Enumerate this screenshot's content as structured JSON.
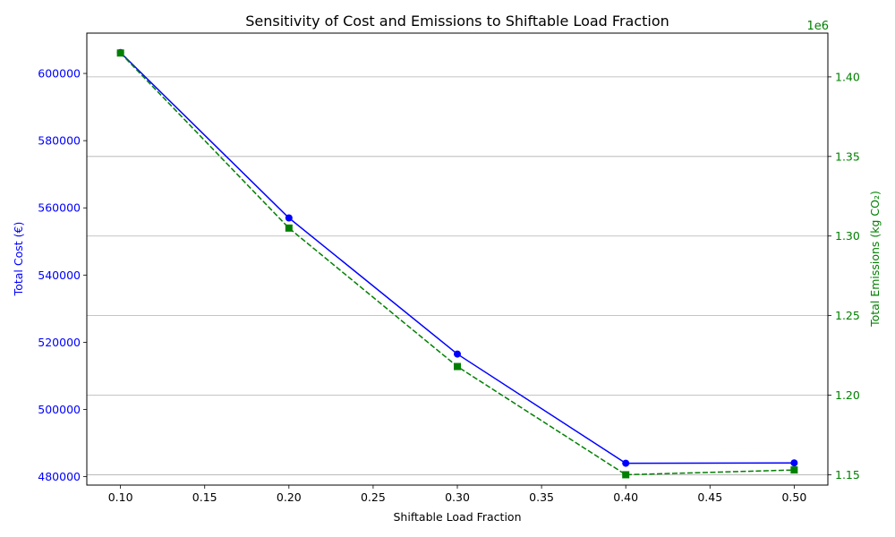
{
  "chart_data": {
    "type": "line",
    "title": "Sensitivity of Cost and Emissions to Shiftable Load Fraction",
    "xlabel": "Shiftable Load Fraction",
    "x": [
      0.1,
      0.2,
      0.3,
      0.4,
      0.5
    ],
    "xlim": [
      0.08,
      0.52
    ],
    "xticks": [
      "0.10",
      "0.15",
      "0.20",
      "0.25",
      "0.30",
      "0.35",
      "0.40",
      "0.45",
      "0.50"
    ],
    "left_axis": {
      "label": "Total Cost (€)",
      "color": "#0000ff",
      "ylim": [
        477500,
        612000
      ],
      "ticks": [
        480000,
        500000,
        520000,
        540000,
        560000,
        580000,
        600000
      ],
      "tick_labels": [
        "480000",
        "500000",
        "520000",
        "540000",
        "560000",
        "580000",
        "600000"
      ]
    },
    "right_axis": {
      "label": "Total Emissions (kg CO₂)",
      "color": "#008000",
      "offset_text": "1e6",
      "ylim": [
        1.1435,
        1.4275
      ],
      "ticks": [
        1.15,
        1.2,
        1.25,
        1.3,
        1.35,
        1.4
      ],
      "tick_labels": [
        "1.15",
        "1.20",
        "1.25",
        "1.30",
        "1.35",
        "1.40"
      ]
    },
    "series": [
      {
        "axis": "left",
        "color": "#0000ff",
        "linestyle": "solid",
        "marker": "circle",
        "values": [
          606200,
          557000,
          516500,
          484000,
          484100
        ]
      },
      {
        "axis": "right",
        "color": "#008000",
        "linestyle": "dashed",
        "marker": "square",
        "values": [
          1.415,
          1.305,
          1.218,
          1.15,
          1.153
        ]
      }
    ],
    "grid": "horizontal at right-axis ticks"
  }
}
